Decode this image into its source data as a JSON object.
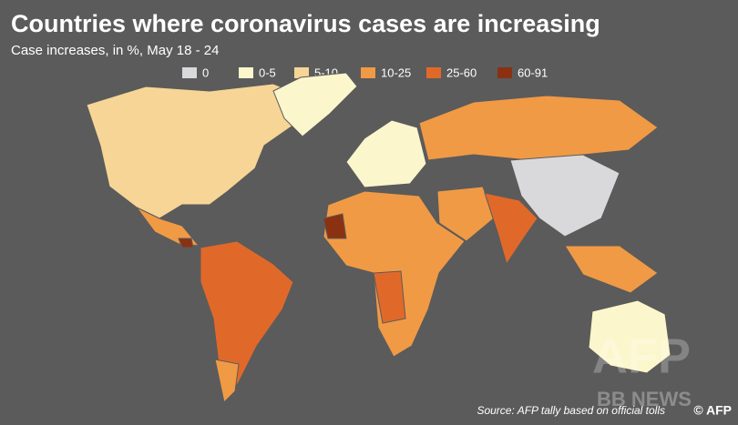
{
  "header": {
    "title": "Countries where coronavirus cases are increasing",
    "subtitle": "Case increases, in %, May 18 - 24"
  },
  "legend": [
    {
      "label": "0",
      "color": "#d9d9dc"
    },
    {
      "label": "0-5",
      "color": "#fbf6cc"
    },
    {
      "label": "5-10",
      "color": "#f6d596"
    },
    {
      "label": "10-25",
      "color": "#f09a45"
    },
    {
      "label": "25-60",
      "color": "#e0692a"
    },
    {
      "label": "60-91",
      "color": "#8a3112"
    }
  ],
  "source": "Source: AFP tally based on official tolls",
  "credit": "© AFP",
  "watermark": {
    "brand": "AFP",
    "site": "BB NEWS"
  }
}
